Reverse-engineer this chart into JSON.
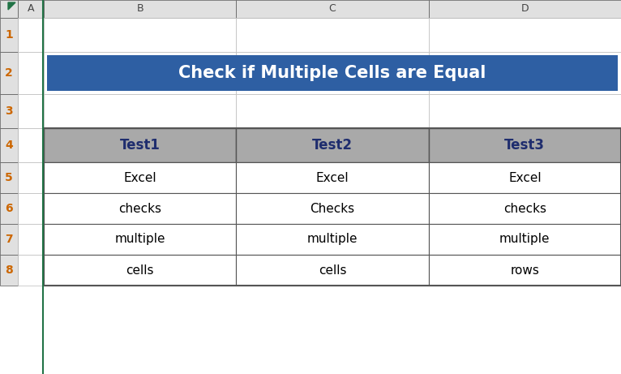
{
  "title": "Check if Multiple Cells are Equal",
  "title_bg": "#2E5FA3",
  "title_text_color": "#FFFFFF",
  "header_bg": "#A9A9A9",
  "header_text_color": "#1F2D6E",
  "cell_bg": "#FFFFFF",
  "cell_text_color": "#000000",
  "excel_bg": "#FFFFFF",
  "row_header_bg": "#E0E0E0",
  "col_header_bg": "#E0E0E0",
  "col_header_text": "#444444",
  "row_num_text": "#CC6600",
  "grid_line_color": "#BBBBBB",
  "dark_border": "#555555",
  "triangle_color": "#217346",
  "table_headers": [
    "Test1",
    "Test2",
    "Test3"
  ],
  "table_data": [
    [
      "Excel",
      "Excel",
      "Excel"
    ],
    [
      "checks",
      "Checks",
      "checks"
    ],
    [
      "multiple",
      "multiple",
      "multiple"
    ],
    [
      "cells",
      "cells",
      "rows"
    ]
  ],
  "col_header_labels": [
    "A",
    "B",
    "C",
    "D"
  ],
  "row_number_labels": [
    "1",
    "2",
    "3",
    "4",
    "5",
    "6",
    "7",
    "8"
  ],
  "fig_width": 7.66,
  "fig_height": 4.61,
  "dpi": 100
}
